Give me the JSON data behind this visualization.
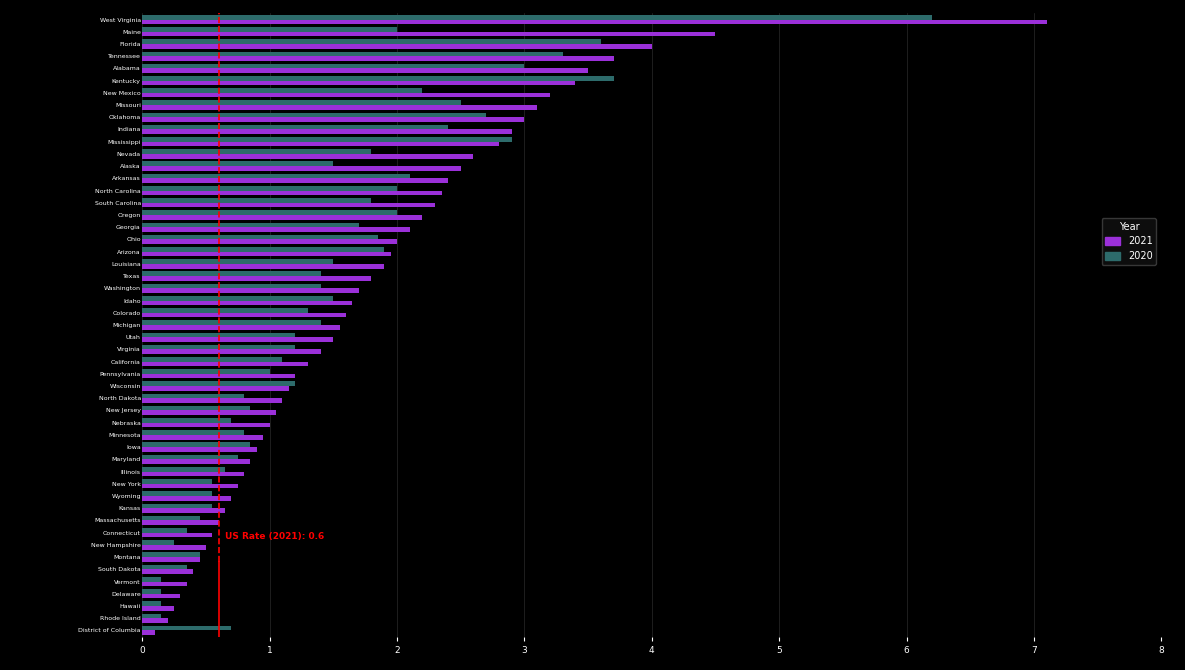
{
  "states": [
    "West Virginia",
    "Maine",
    "Florida",
    "Tennessee",
    "Alabama",
    "Kentucky",
    "New Mexico",
    "Missouri",
    "Oklahoma",
    "Indiana",
    "Mississippi",
    "Nevada",
    "Alaska",
    "Arkansas",
    "North Carolina",
    "South Carolina",
    "Oregon",
    "Georgia",
    "Ohio",
    "Arizona",
    "Louisiana",
    "Texas",
    "Washington",
    "Idaho",
    "Colorado",
    "Michigan",
    "Utah",
    "Virginia",
    "California",
    "Pennsylvania",
    "Wisconsin",
    "North Dakota",
    "New Jersey",
    "Nebraska",
    "Minnesota",
    "Iowa",
    "Maryland",
    "Illinois",
    "New York",
    "Wyoming",
    "Kansas",
    "Massachusetts",
    "Connecticut",
    "New Hampshire",
    "Montana",
    "South Dakota",
    "Vermont",
    "Delaware",
    "Hawaii",
    "Rhode Island",
    "District of Columbia"
  ],
  "rates_2021": [
    7.1,
    4.5,
    4.0,
    3.7,
    3.5,
    3.4,
    3.2,
    3.1,
    3.0,
    2.9,
    2.8,
    2.6,
    2.5,
    2.4,
    2.35,
    2.3,
    2.2,
    2.1,
    2.0,
    1.95,
    1.9,
    1.8,
    1.7,
    1.65,
    1.6,
    1.55,
    1.5,
    1.4,
    1.3,
    1.2,
    1.15,
    1.1,
    1.05,
    1.0,
    0.95,
    0.9,
    0.85,
    0.8,
    0.75,
    0.7,
    0.65,
    0.6,
    0.55,
    0.5,
    0.45,
    0.4,
    0.35,
    0.3,
    0.25,
    0.2,
    0.1
  ],
  "rates_2020": [
    6.2,
    2.0,
    3.6,
    3.3,
    3.0,
    3.7,
    2.2,
    2.5,
    2.7,
    2.4,
    2.9,
    1.8,
    1.5,
    2.1,
    2.0,
    1.8,
    2.0,
    1.7,
    1.85,
    1.9,
    1.5,
    1.4,
    1.4,
    1.5,
    1.3,
    1.4,
    1.2,
    1.2,
    1.1,
    1.0,
    1.2,
    0.8,
    0.85,
    0.7,
    0.8,
    0.85,
    0.75,
    0.65,
    0.55,
    0.55,
    0.55,
    0.45,
    0.35,
    0.25,
    0.45,
    0.35,
    0.15,
    0.15,
    0.15,
    0.15,
    0.7
  ],
  "color_2021": "#9b30d9",
  "color_2020": "#2d6b6b",
  "us_rate_2021": 0.6,
  "us_rate_label": "US Rate (2021): 0.6",
  "background_color": "#000000",
  "text_color": "#ffffff",
  "bar_height": 0.38,
  "figsize": [
    11.85,
    6.7
  ]
}
